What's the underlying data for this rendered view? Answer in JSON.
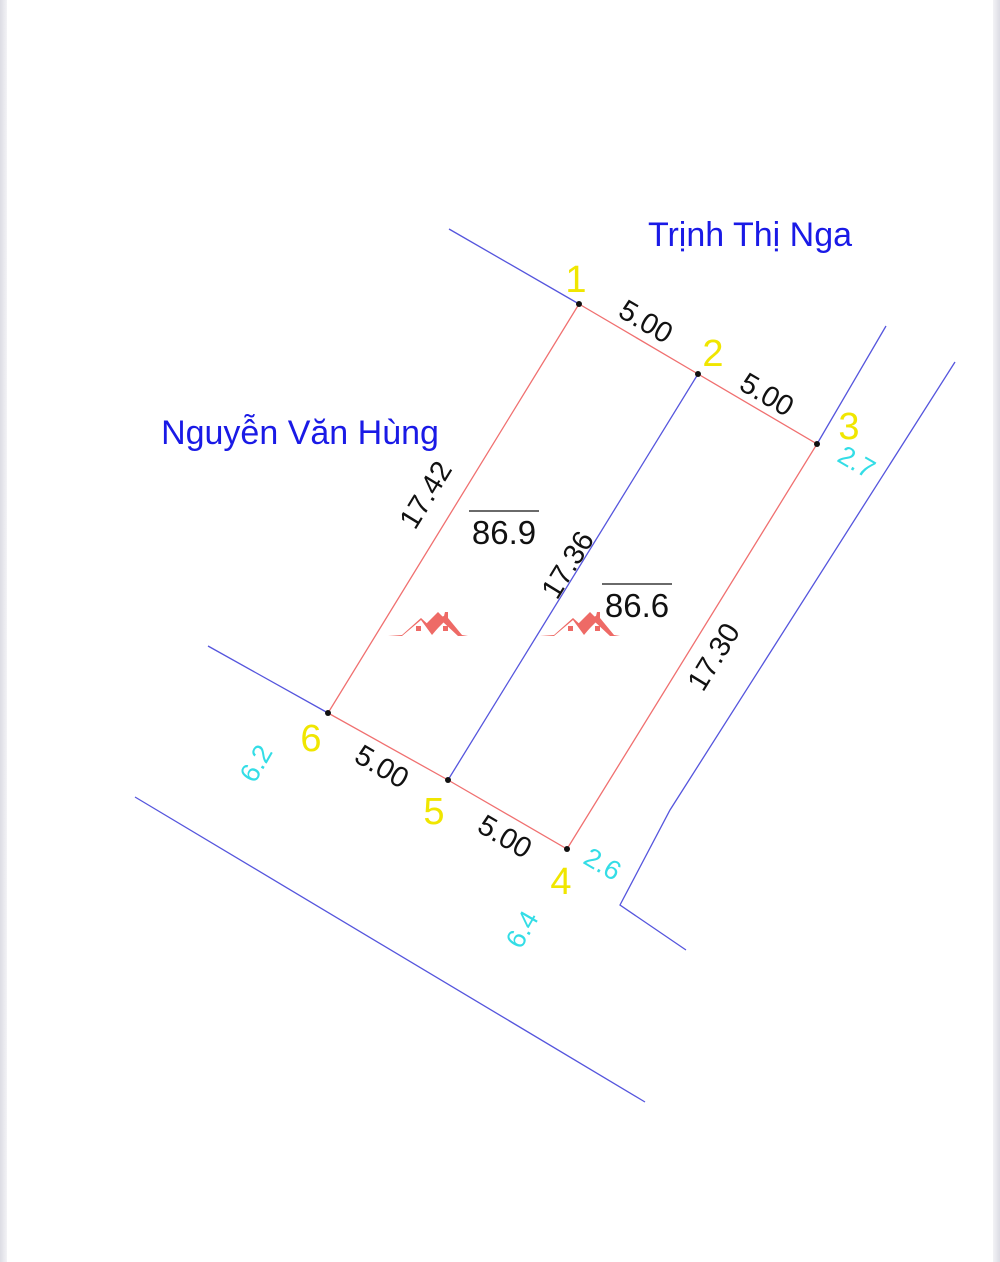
{
  "owners": {
    "top": "Trịnh Thị Nga",
    "left": "Nguyễn Văn Hùng"
  },
  "points": [
    "1",
    "2",
    "3",
    "4",
    "5",
    "6"
  ],
  "dimensions": {
    "p1_p2": "5.00",
    "p2_p3": "5.00",
    "p6_p5": "5.00",
    "p5_p4": "5.00",
    "p6_p1": "17.42",
    "p5_p2": "17.36",
    "p4_p3": "17.30"
  },
  "areas": {
    "left_lot": "86.9",
    "right_lot": "86.6"
  },
  "elevations": {
    "e1": "2.7",
    "e2": "2.6",
    "e3": "6.2",
    "e4": "6.4"
  },
  "colors": {
    "boundary": "#f07070",
    "neighbor_line": "#5555dd",
    "point_label": "#f0e600",
    "elevation": "#33dde6",
    "owner_text": "#1a1ae6",
    "logo": "#ee6a66"
  },
  "icons": {
    "logo": "house-roof-logo"
  }
}
